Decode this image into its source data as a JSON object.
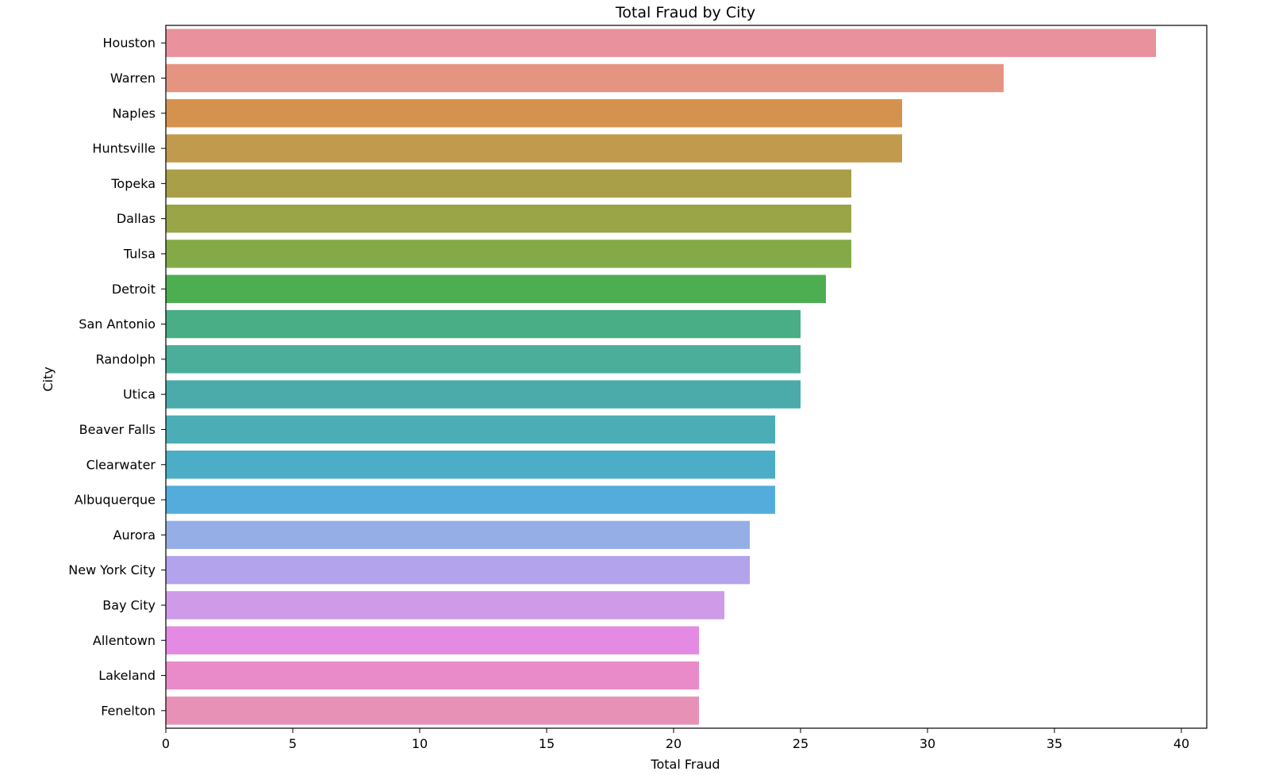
{
  "chart_data": {
    "type": "bar",
    "orientation": "horizontal",
    "title": "Total Fraud by City",
    "xlabel": "Total Fraud",
    "ylabel": "City",
    "xlim": [
      0,
      41
    ],
    "xticks": [
      0,
      5,
      10,
      15,
      20,
      25,
      30,
      35,
      40
    ],
    "grid": false,
    "legend": "none",
    "categories": [
      "Houston",
      "Warren",
      "Naples",
      "Huntsville",
      "Topeka",
      "Dallas",
      "Tulsa",
      "Detroit",
      "San Antonio",
      "Randolph",
      "Utica",
      "Beaver Falls",
      "Clearwater",
      "Albuquerque",
      "Aurora",
      "New York City",
      "Bay City",
      "Allentown",
      "Lakeland",
      "Fenelton"
    ],
    "values": [
      39,
      33,
      29,
      29,
      27,
      27,
      27,
      26,
      25,
      25,
      25,
      24,
      24,
      24,
      23,
      23,
      22,
      21,
      21,
      21
    ],
    "colors": [
      "#e9929d",
      "#e69482",
      "#d5924f",
      "#c19a4e",
      "#a89f48",
      "#99a547",
      "#84aa47",
      "#4cae50",
      "#49ae85",
      "#4aae9a",
      "#4babab",
      "#4badb5",
      "#4cadc6",
      "#54acdc",
      "#96aee6",
      "#b3a2ec",
      "#cf9ae7",
      "#e48ae2",
      "#e88bc8",
      "#e891b6"
    ]
  }
}
